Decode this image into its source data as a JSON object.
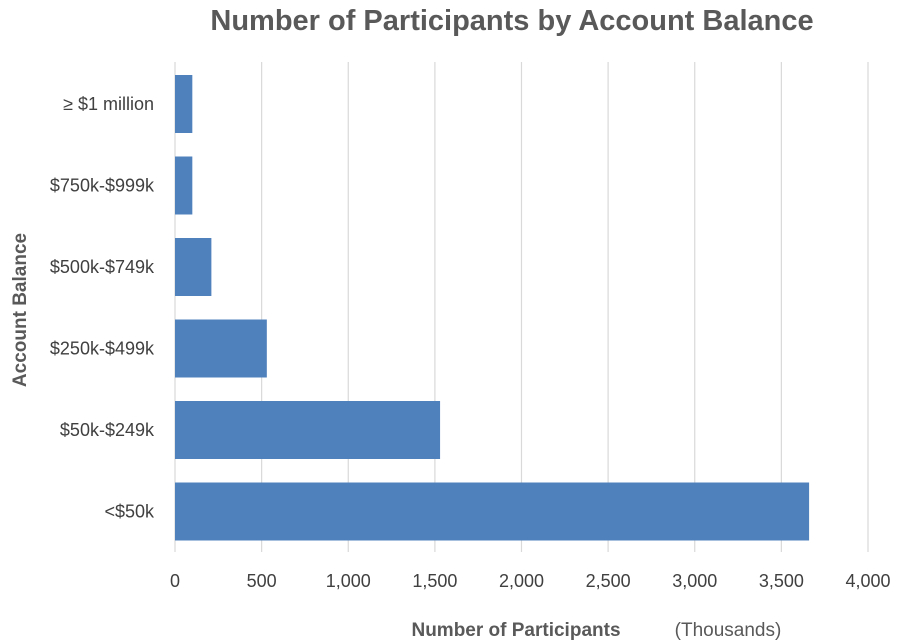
{
  "chart_data": {
    "type": "bar",
    "orientation": "horizontal",
    "title": "Number of Participants by Account Balance",
    "xlabel": "Number of Participants",
    "xlabel_note": "(Thousands)",
    "ylabel": "Account Balance",
    "categories": [
      "≥ $1 million",
      "$750k-$999k",
      "$500k-$749k",
      "$250k-$499k",
      "$50k-$249k",
      "<$50k"
    ],
    "values": [
      100,
      100,
      210,
      530,
      1530,
      3660
    ],
    "xlim": [
      0,
      4000
    ],
    "xticks": [
      0,
      500,
      1000,
      1500,
      2000,
      2500,
      3000,
      3500,
      4000
    ],
    "xtick_labels": [
      "0",
      "500",
      "1,000",
      "1,500",
      "2,000",
      "2,500",
      "3,000",
      "3,500",
      "4,000"
    ],
    "grid": "vertical",
    "legend": "none",
    "bar_color": "#4F81BD",
    "grid_color": "#D9D9D9"
  }
}
